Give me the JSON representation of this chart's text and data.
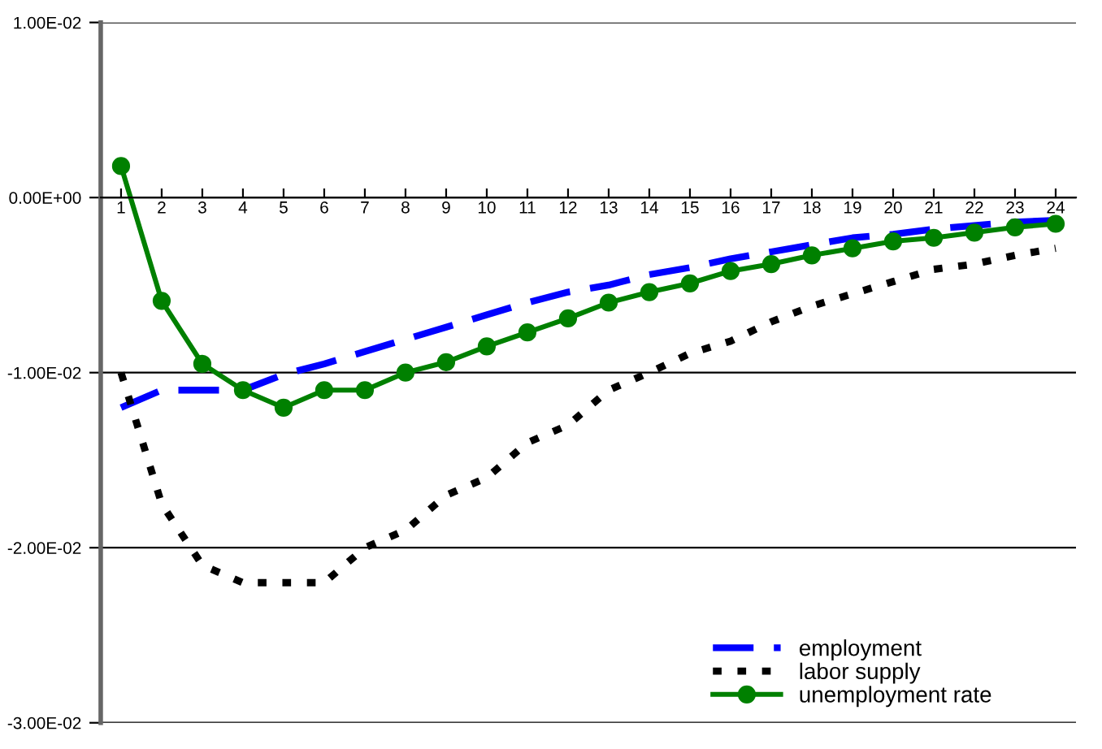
{
  "chart_data": {
    "type": "line",
    "categories": [
      "1",
      "2",
      "3",
      "4",
      "5",
      "6",
      "7",
      "8",
      "9",
      "10",
      "11",
      "12",
      "13",
      "14",
      "15",
      "16",
      "17",
      "18",
      "19",
      "20",
      "21",
      "22",
      "23",
      "24"
    ],
    "series": [
      {
        "name": "employment",
        "color": "#0000ff",
        "line_style": "dashed",
        "marker": "none",
        "values": [
          -0.012,
          -0.011,
          -0.011,
          -0.011,
          -0.0101,
          -0.0095,
          -0.0088,
          -0.0081,
          -0.0074,
          -0.0067,
          -0.006,
          -0.0054,
          -0.005,
          -0.0044,
          -0.004,
          -0.0035,
          -0.0031,
          -0.0027,
          -0.0023,
          -0.0021,
          -0.0018,
          -0.0016,
          -0.0014,
          -0.0013
        ]
      },
      {
        "name": "labor supply",
        "color": "#000000",
        "line_style": "dotted",
        "marker": "none",
        "values": [
          -0.01,
          -0.0175,
          -0.021,
          -0.022,
          -0.022,
          -0.022,
          -0.02,
          -0.019,
          -0.017,
          -0.016,
          -0.014,
          -0.013,
          -0.011,
          -0.01,
          -0.0089,
          -0.0082,
          -0.0071,
          -0.0062,
          -0.0055,
          -0.0048,
          -0.0041,
          -0.0038,
          -0.0033,
          -0.0029
        ]
      },
      {
        "name": "unemployment rate",
        "color": "#008000",
        "line_style": "solid",
        "marker": "circle",
        "values": [
          0.0018,
          -0.0059,
          -0.0095,
          -0.011,
          -0.012,
          -0.011,
          -0.011,
          -0.01,
          -0.0094,
          -0.0085,
          -0.0077,
          -0.0069,
          -0.006,
          -0.0054,
          -0.0049,
          -0.0042,
          -0.0038,
          -0.0033,
          -0.0029,
          -0.0025,
          -0.0023,
          -0.002,
          -0.0017,
          -0.0015
        ]
      }
    ],
    "ylim": [
      -0.03,
      0.01
    ],
    "yticks": [
      {
        "value": 0.01,
        "label": "1.00E-02"
      },
      {
        "value": 0,
        "label": "0.00E+00"
      },
      {
        "value": -0.01,
        "label": "-1.00E-02"
      },
      {
        "value": -0.02,
        "label": "-2.00E-02"
      },
      {
        "value": -0.03,
        "label": "-3.00E-02"
      }
    ],
    "grid": "y",
    "legend": "bottom right"
  }
}
